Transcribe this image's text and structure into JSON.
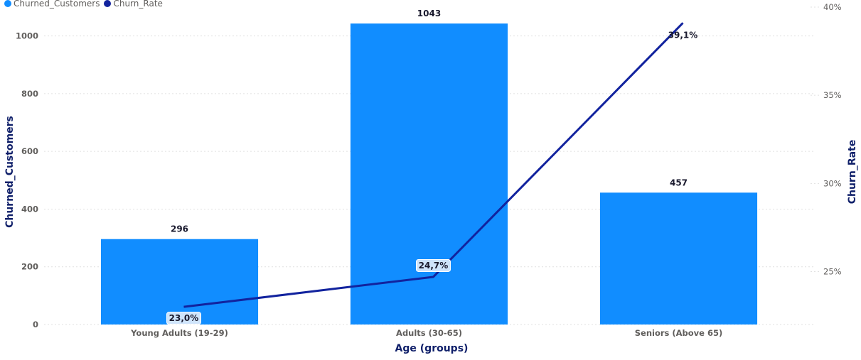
{
  "colors": {
    "bar": "#118dff",
    "line": "#12239e",
    "label_bg": "#cfe4fb",
    "axis_title": "#10206a"
  },
  "legend": [
    {
      "label": "Churned_Customers",
      "color": "#118dff"
    },
    {
      "label": "Churn_Rate",
      "color": "#12239e"
    }
  ],
  "chart_data": {
    "type": "bar",
    "categories": [
      "Young Adults (19-29)",
      "Adults (30-65)",
      "Seniors (Above 65)"
    ],
    "series": [
      {
        "name": "Churned_Customers",
        "type": "bar",
        "axis": "left",
        "values": [
          296,
          1043,
          457
        ],
        "labels": [
          "296",
          "1043",
          "457"
        ]
      },
      {
        "name": "Churn_Rate",
        "type": "line",
        "axis": "right",
        "values": [
          23.0,
          24.7,
          39.1
        ],
        "labels": [
          "23,0%",
          "24,7%",
          "39,1%"
        ]
      }
    ],
    "xlabel": "Age (groups)",
    "ylabel": "Churned_Customers",
    "y2label": "Churn_Rate",
    "ylim": [
      0,
      1100
    ],
    "yticks": [
      0,
      200,
      400,
      600,
      800,
      1000
    ],
    "ytick_labels": [
      "0",
      "200",
      "400",
      "600",
      "800",
      "1000"
    ],
    "y2lim": [
      22.0,
      40.0
    ],
    "y2ticks": [
      25,
      30,
      35,
      40
    ],
    "y2tick_labels": [
      "25%",
      "30%",
      "35%",
      "40%"
    ],
    "grid": true,
    "legend_position": "top-left"
  }
}
